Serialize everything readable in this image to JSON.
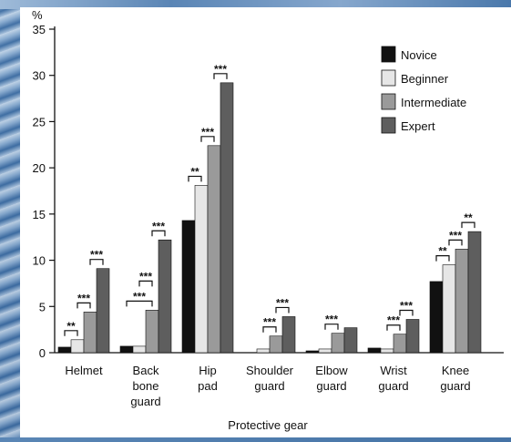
{
  "chart_data": {
    "type": "bar",
    "title": "",
    "xlabel": "Protective gear",
    "ylabel": "%",
    "ylim": [
      0,
      35
    ],
    "yticks": [
      0,
      5,
      10,
      15,
      20,
      25,
      30,
      35
    ],
    "categories": [
      [
        "Helmet"
      ],
      [
        "Back",
        "bone",
        "guard"
      ],
      [
        "Hip",
        "pad"
      ],
      [
        "Shoulder",
        "guard"
      ],
      [
        "Elbow",
        "guard"
      ],
      [
        "Wrist",
        "guard"
      ],
      [
        "Knee",
        "guard"
      ]
    ],
    "legend_position": "top-right",
    "series": [
      {
        "name": "Novice",
        "color": "#111111",
        "values": [
          0.6,
          0.7,
          14.3,
          0.0,
          0.2,
          0.5,
          7.7
        ]
      },
      {
        "name": "Beginner",
        "color": "#e6e6e6",
        "values": [
          1.4,
          0.7,
          18.1,
          0.4,
          0.4,
          0.4,
          9.5
        ]
      },
      {
        "name": "Intermediate",
        "color": "#9a9a9a",
        "values": [
          4.4,
          4.6,
          22.4,
          1.8,
          2.1,
          2.0,
          11.2
        ]
      },
      {
        "name": "Expert",
        "color": "#5e5e5e",
        "values": [
          9.1,
          12.2,
          29.2,
          3.9,
          2.7,
          3.6,
          13.1
        ]
      }
    ],
    "annotations": [
      {
        "category": 0,
        "from": 0,
        "to": 1,
        "label": "**"
      },
      {
        "category": 0,
        "from": 1,
        "to": 2,
        "label": "***"
      },
      {
        "category": 0,
        "from": 2,
        "to": 3,
        "label": "***"
      },
      {
        "category": 1,
        "from": 0,
        "to": 2,
        "label": "***"
      },
      {
        "category": 1,
        "from": 1,
        "to": 2,
        "label": "***"
      },
      {
        "category": 1,
        "from": 2,
        "to": 3,
        "label": "***"
      },
      {
        "category": 2,
        "from": 0,
        "to": 1,
        "label": "**"
      },
      {
        "category": 2,
        "from": 1,
        "to": 2,
        "label": "***"
      },
      {
        "category": 2,
        "from": 2,
        "to": 3,
        "label": "***"
      },
      {
        "category": 3,
        "from": 1,
        "to": 2,
        "label": "***"
      },
      {
        "category": 3,
        "from": 2,
        "to": 3,
        "label": "***"
      },
      {
        "category": 4,
        "from": 1,
        "to": 2,
        "label": "***"
      },
      {
        "category": 5,
        "from": 1,
        "to": 2,
        "label": "***"
      },
      {
        "category": 5,
        "from": 2,
        "to": 3,
        "label": "***"
      },
      {
        "category": 6,
        "from": 0,
        "to": 1,
        "label": "**"
      },
      {
        "category": 6,
        "from": 1,
        "to": 2,
        "label": "***"
      },
      {
        "category": 6,
        "from": 2,
        "to": 3,
        "label": "**"
      }
    ]
  }
}
